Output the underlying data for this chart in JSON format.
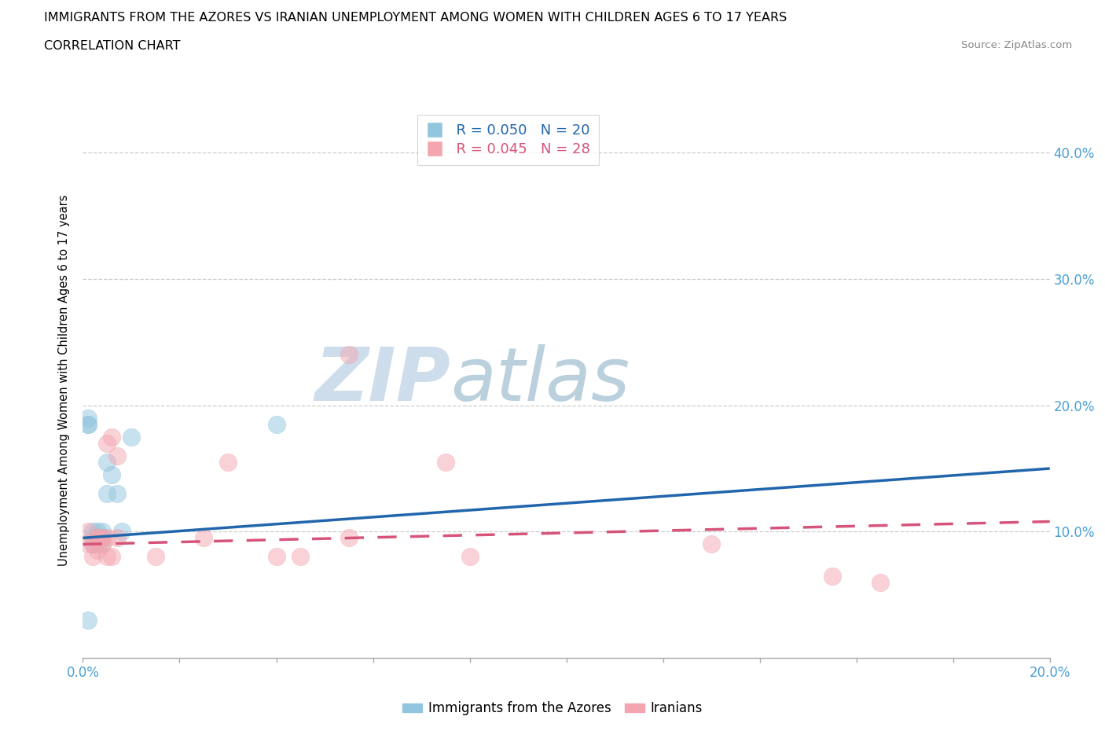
{
  "title": "IMMIGRANTS FROM THE AZORES VS IRANIAN UNEMPLOYMENT AMONG WOMEN WITH CHILDREN AGES 6 TO 17 YEARS",
  "subtitle": "CORRELATION CHART",
  "source": "Source: ZipAtlas.com",
  "ylabel": "Unemployment Among Women with Children Ages 6 to 17 years",
  "xlim": [
    0.0,
    0.2
  ],
  "ylim": [
    0.0,
    0.44
  ],
  "color_azores": "#92c5de",
  "color_iranians": "#f4a6b0",
  "color_azores_line": "#2166ac",
  "color_iranians_line": "#d6547a",
  "watermark_zip": "#c8d8e8",
  "watermark_atlas": "#b8ccd8",
  "legend_r_azores": "R = 0.050",
  "legend_n_azores": "N = 20",
  "legend_r_iranians": "R = 0.045",
  "legend_n_iranians": "N = 28",
  "azores_x": [
    0.001,
    0.001,
    0.001,
    0.002,
    0.002,
    0.002,
    0.003,
    0.003,
    0.003,
    0.004,
    0.004,
    0.004,
    0.005,
    0.005,
    0.006,
    0.007,
    0.008,
    0.01,
    0.04,
    0.001
  ],
  "azores_y": [
    0.185,
    0.19,
    0.185,
    0.09,
    0.095,
    0.1,
    0.09,
    0.1,
    0.095,
    0.095,
    0.09,
    0.1,
    0.13,
    0.155,
    0.145,
    0.13,
    0.1,
    0.175,
    0.185,
    0.03
  ],
  "iranians_x": [
    0.001,
    0.001,
    0.002,
    0.002,
    0.003,
    0.003,
    0.003,
    0.004,
    0.004,
    0.005,
    0.005,
    0.005,
    0.006,
    0.006,
    0.007,
    0.007,
    0.015,
    0.025,
    0.03,
    0.04,
    0.045,
    0.055,
    0.055,
    0.075,
    0.08,
    0.13,
    0.155,
    0.165
  ],
  "iranians_y": [
    0.1,
    0.09,
    0.08,
    0.09,
    0.085,
    0.095,
    0.095,
    0.09,
    0.095,
    0.08,
    0.095,
    0.17,
    0.08,
    0.175,
    0.095,
    0.16,
    0.08,
    0.095,
    0.155,
    0.08,
    0.08,
    0.095,
    0.24,
    0.155,
    0.08,
    0.09,
    0.065,
    0.06
  ],
  "azores_line_x0": 0.0,
  "azores_line_x1": 0.2,
  "azores_line_y0": 0.095,
  "azores_line_y1": 0.15,
  "iranians_line_x0": 0.0,
  "iranians_line_x1": 0.2,
  "iranians_line_y0": 0.09,
  "iranians_line_y1": 0.108
}
